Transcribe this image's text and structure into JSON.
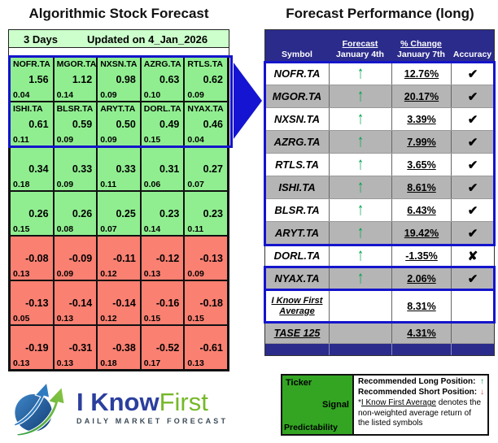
{
  "left_panel": {
    "title": "Algorithmic Stock Forecast",
    "period_label": "3 Days",
    "updated_label": "Updated on 4_Jan_2026",
    "grid_rows": [
      {
        "tone": "green",
        "highlighted": true,
        "cells": [
          {
            "ticker": "NOFR.TA",
            "signal": "1.56",
            "predictability": "0.04"
          },
          {
            "ticker": "MGOR.TA",
            "signal": "1.12",
            "predictability": "0.14"
          },
          {
            "ticker": "NXSN.TA",
            "signal": "0.98",
            "predictability": "0.09"
          },
          {
            "ticker": "AZRG.TA",
            "signal": "0.63",
            "predictability": "0.10"
          },
          {
            "ticker": "RTLS.TA",
            "signal": "0.62",
            "predictability": "0.09"
          }
        ]
      },
      {
        "tone": "green",
        "highlighted": true,
        "cells": [
          {
            "ticker": "ISHI.TA",
            "signal": "0.61",
            "predictability": "0.11"
          },
          {
            "ticker": "BLSR.TA",
            "signal": "0.59",
            "predictability": "0.09"
          },
          {
            "ticker": "ARYT.TA",
            "signal": "0.50",
            "predictability": "0.09"
          },
          {
            "ticker": "DORL.TA",
            "signal": "0.49",
            "predictability": "0.15"
          },
          {
            "ticker": "NYAX.TA",
            "signal": "0.46",
            "predictability": "0.04"
          }
        ]
      },
      {
        "tone": "green",
        "highlighted": false,
        "cells": [
          {
            "signal": "0.34",
            "predictability": "0.18"
          },
          {
            "signal": "0.33",
            "predictability": "0.09"
          },
          {
            "signal": "0.33",
            "predictability": "0.11"
          },
          {
            "signal": "0.31",
            "predictability": "0.06"
          },
          {
            "signal": "0.27",
            "predictability": "0.07"
          }
        ]
      },
      {
        "tone": "green",
        "highlighted": false,
        "cells": [
          {
            "signal": "0.26",
            "predictability": "0.15"
          },
          {
            "signal": "0.26",
            "predictability": "0.08"
          },
          {
            "signal": "0.25",
            "predictability": "0.07"
          },
          {
            "signal": "0.23",
            "predictability": "0.14"
          },
          {
            "signal": "0.23",
            "predictability": "0.11"
          }
        ]
      },
      {
        "tone": "red",
        "highlighted": false,
        "cells": [
          {
            "signal": "-0.08",
            "predictability": "0.13"
          },
          {
            "signal": "-0.09",
            "predictability": "0.09"
          },
          {
            "signal": "-0.11",
            "predictability": "0.12"
          },
          {
            "signal": "-0.12",
            "predictability": "0.13"
          },
          {
            "signal": "-0.13",
            "predictability": "0.09"
          }
        ]
      },
      {
        "tone": "red",
        "highlighted": false,
        "cells": [
          {
            "signal": "-0.13",
            "predictability": "0.05"
          },
          {
            "signal": "-0.14",
            "predictability": "0.13"
          },
          {
            "signal": "-0.14",
            "predictability": "0.12"
          },
          {
            "signal": "-0.16",
            "predictability": "0.15"
          },
          {
            "signal": "-0.18",
            "predictability": "0.15"
          }
        ]
      },
      {
        "tone": "red",
        "highlighted": false,
        "cells": [
          {
            "signal": "-0.19",
            "predictability": "0.13"
          },
          {
            "signal": "-0.31",
            "predictability": "0.13"
          },
          {
            "signal": "-0.38",
            "predictability": "0.18"
          },
          {
            "signal": "-0.52",
            "predictability": "0.17"
          },
          {
            "signal": "-0.61",
            "predictability": "0.13"
          }
        ]
      }
    ]
  },
  "right_panel": {
    "title": "Forecast Performance (long)",
    "columns": {
      "symbol": "Symbol",
      "forecast_top": "Forecast",
      "forecast_bottom": "January 4th",
      "change_top": "% Change",
      "change_bottom": "January 7th",
      "accuracy": "Accuracy"
    },
    "rows": [
      {
        "symbol": "NOFR.TA",
        "forecast": "up",
        "change": "12.76%",
        "accuracy": "correct"
      },
      {
        "symbol": "MGOR.TA",
        "forecast": "up",
        "change": "20.17%",
        "accuracy": "correct"
      },
      {
        "symbol": "NXSN.TA",
        "forecast": "up",
        "change": "3.39%",
        "accuracy": "correct"
      },
      {
        "symbol": "AZRG.TA",
        "forecast": "up",
        "change": "7.99%",
        "accuracy": "correct"
      },
      {
        "symbol": "RTLS.TA",
        "forecast": "up",
        "change": "3.65%",
        "accuracy": "correct"
      },
      {
        "symbol": "ISHI.TA",
        "forecast": "up",
        "change": "8.61%",
        "accuracy": "correct"
      },
      {
        "symbol": "BLSR.TA",
        "forecast": "up",
        "change": "6.43%",
        "accuracy": "correct"
      },
      {
        "symbol": "ARYT.TA",
        "forecast": "up",
        "change": "19.42%",
        "accuracy": "correct"
      },
      {
        "symbol": "DORL.TA",
        "forecast": "up",
        "change": "-1.35%",
        "accuracy": "incorrect"
      },
      {
        "symbol": "NYAX.TA",
        "forecast": "up",
        "change": "2.06%",
        "accuracy": "correct"
      }
    ],
    "summary_rows": [
      {
        "label_lines": [
          "I Know First",
          "Average"
        ],
        "change": "8.31%"
      },
      {
        "label_lines": [
          "TASE 125"
        ],
        "change": "4.31%"
      }
    ]
  },
  "logo": {
    "name_primary": "I Know",
    "name_secondary": "First",
    "tagline": "DAILY MARKET FORECAST"
  },
  "legend": {
    "cell_labels": {
      "ticker": "Ticker",
      "signal": "Signal",
      "predictability": "Predictability"
    },
    "long_position_label": "Recommended Long Position:",
    "short_position_label": "Recommended Short Position:",
    "note_prefix": "*",
    "note_underlined": "I Know First Average",
    "note_suffix": " denotes the non-weighted average return of the listed symbols"
  },
  "icons": {
    "up_arrow": "↑",
    "down_arrow": "↓",
    "check": "✔",
    "cross": "✘"
  },
  "colors": {
    "highlight_border": "#1414cc",
    "positive_cell": "#90ee90",
    "negative_cell": "#fa8072",
    "header_green": "#ccffcc",
    "table_header_navy": "#2b2b8c",
    "row_gray": "#b5b5b5",
    "arrow_green": "#00a550",
    "arrow_red": "#e03a3a",
    "legend_green": "#33a523"
  }
}
